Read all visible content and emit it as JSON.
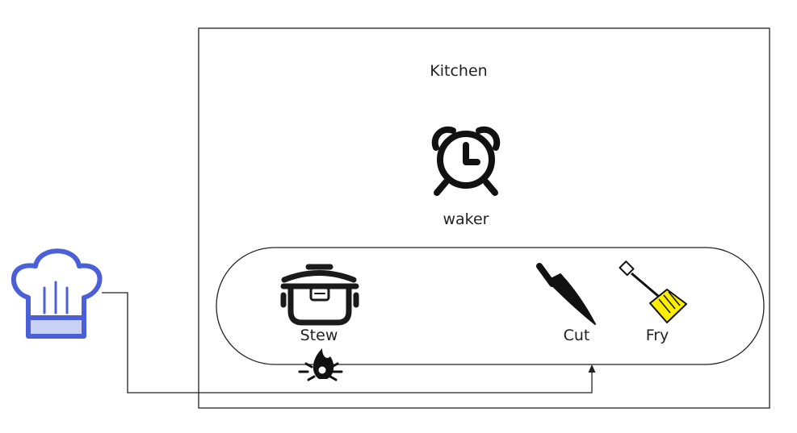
{
  "diagram": {
    "container_label": "Kitchen",
    "timer": {
      "label": "waker",
      "icon": "alarm-clock-icon"
    },
    "actor": {
      "icon": "chef-hat-icon"
    },
    "tools": [
      {
        "id": "stew",
        "label": "Stew",
        "icon": "pressure-cooker-icon"
      },
      {
        "id": "cut",
        "label": "Cut",
        "icon": "kitchen-knife-icon"
      },
      {
        "id": "fry",
        "label": "Fry",
        "icon": "spatula-icon"
      }
    ],
    "heat": {
      "icon": "fire-icon"
    },
    "connection": {
      "from": "actor",
      "to": "cut"
    }
  },
  "colors": {
    "stroke": "#222222",
    "chef_hat": "#4a5fd8",
    "chef_hat_band": "#c9d2f5",
    "spatula_fill": "#ffee00"
  }
}
